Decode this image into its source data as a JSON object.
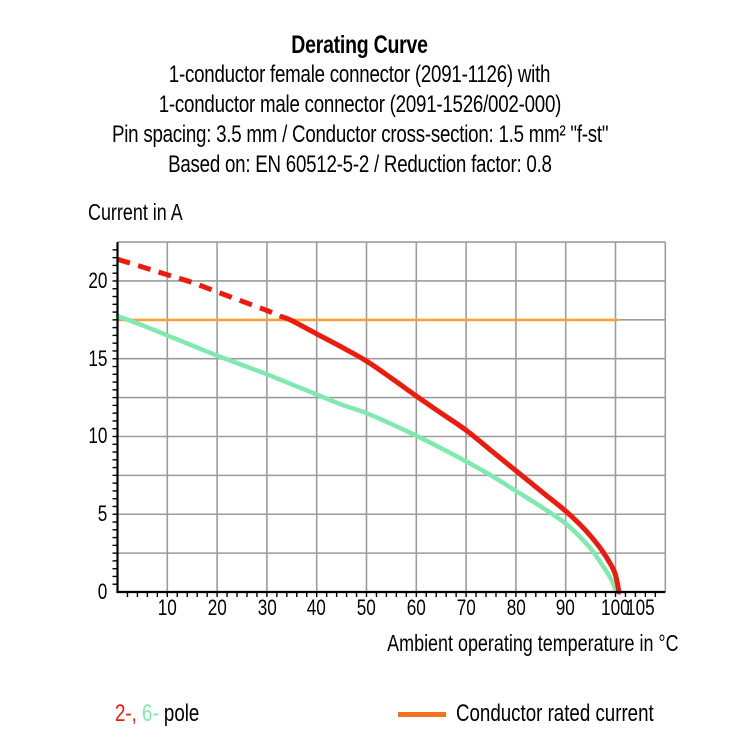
{
  "header": {
    "title": "Derating Curve",
    "subtitle_lines": [
      "1-conductor female connector (2091-1126) with",
      "1-conductor male connector (2091-1526/002-000)",
      "Pin spacing: 3.5 mm / Conductor cross-section: 1.5 mm² \"f-st\"",
      "Based on: EN 60512-5-2 / Reduction factor: 0.8"
    ]
  },
  "chart_data": {
    "type": "line",
    "title": "Derating Curve",
    "xlabel": "Ambient operating temperature in °C",
    "ylabel": "Current in A",
    "xlim": [
      0,
      110
    ],
    "ylim": [
      0,
      22.5
    ],
    "grid": true,
    "x_gridline_step": 10,
    "y_gridline_step": 2.5,
    "x_minor_tick_step": 2,
    "y_minor_tick_step": 0.5,
    "x_tick_values": [
      10,
      20,
      30,
      40,
      50,
      60,
      70,
      80,
      90,
      100,
      105
    ],
    "x_tick_labels": [
      "10",
      "20",
      "30",
      "40",
      "50",
      "60",
      "70",
      "80",
      "90",
      "100",
      "105"
    ],
    "y_tick_values": [
      0,
      5,
      10,
      15,
      20
    ],
    "y_tick_labels": [
      "0",
      "5",
      "10",
      "15",
      "20"
    ],
    "colors": {
      "grid": "#9C9C9C",
      "axis": "#000000",
      "text": "#000000"
    },
    "series": [
      {
        "id": "rated-current",
        "name": "Conductor rated current",
        "color": "#F7A138",
        "width": 2.6,
        "segments": [
          {
            "dash": null,
            "points": [
              [
                0,
                17.5
              ],
              [
                100.5,
                17.5
              ]
            ]
          }
        ]
      },
      {
        "id": "6-pole",
        "name": "6-pole",
        "color": "#7FEAAF",
        "width": 4.5,
        "segments": [
          {
            "dash": null,
            "points": [
              [
                0,
                17.75
              ],
              [
                5,
                17.15
              ],
              [
                10,
                16.5
              ],
              [
                15,
                15.85
              ],
              [
                20,
                15.2
              ],
              [
                25,
                14.6
              ],
              [
                30,
                14.0
              ],
              [
                35,
                13.35
              ],
              [
                40,
                12.7
              ],
              [
                45,
                12.05
              ],
              [
                50,
                11.5
              ],
              [
                55,
                10.8
              ],
              [
                60,
                10.05
              ],
              [
                65,
                9.25
              ],
              [
                70,
                8.4
              ],
              [
                75,
                7.5
              ],
              [
                80,
                6.5
              ],
              [
                85,
                5.5
              ],
              [
                90,
                4.4
              ],
              [
                93,
                3.5
              ],
              [
                95,
                2.8
              ],
              [
                97,
                1.9
              ],
              [
                99,
                0.9
              ],
              [
                100.2,
                0
              ]
            ]
          }
        ]
      },
      {
        "id": "2-pole",
        "name": "2-pole",
        "color": "#EC1B0E",
        "width": 5,
        "segments": [
          {
            "dash": "13 8.5",
            "points": [
              [
                0,
                21.4
              ],
              [
                5,
                20.9
              ],
              [
                10,
                20.4
              ],
              [
                15,
                19.9
              ],
              [
                20,
                19.3
              ],
              [
                25,
                18.7
              ],
              [
                30,
                18.1
              ],
              [
                33,
                17.7
              ]
            ]
          },
          {
            "dash": null,
            "points": [
              [
                33,
                17.7
              ],
              [
                35,
                17.45
              ],
              [
                40,
                16.6
              ],
              [
                45,
                15.75
              ],
              [
                50,
                14.85
              ],
              [
                55,
                13.75
              ],
              [
                60,
                12.6
              ],
              [
                65,
                11.5
              ],
              [
                70,
                10.4
              ],
              [
                75,
                9.1
              ],
              [
                80,
                7.8
              ],
              [
                85,
                6.5
              ],
              [
                90,
                5.2
              ],
              [
                93,
                4.3
              ],
              [
                95,
                3.6
              ],
              [
                97,
                2.8
              ],
              [
                99,
                1.8
              ],
              [
                100,
                1.1
              ],
              [
                100.7,
                0
              ]
            ]
          }
        ]
      }
    ],
    "legend_position": "bottom"
  },
  "legend": {
    "pole_segments": [
      {
        "text": "2-, ",
        "color": "#EC1B0E"
      },
      {
        "text": "6-",
        "color": "#7FEAAF"
      },
      {
        "text": " pole",
        "color": "#000000"
      }
    ],
    "rated": {
      "swatch_color": "#F3731C",
      "label": "Conductor rated current"
    }
  }
}
